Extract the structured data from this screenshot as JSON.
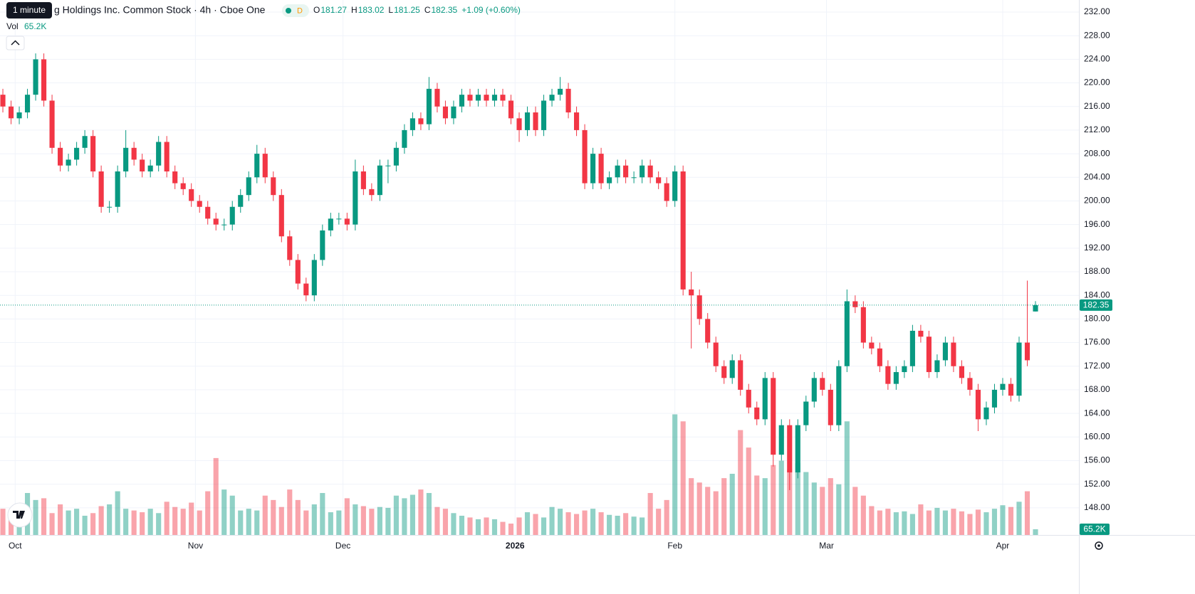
{
  "chart_data": {
    "type": "candlestick",
    "title": "g Holdings Inc. Common Stock · 4h · Cboe One",
    "tooltip": "1 minute",
    "badge": "D",
    "ohlc_labels": [
      "O",
      "H",
      "L",
      "C"
    ],
    "change": "+1.09 (+0.60%)",
    "volume_name": "Vol",
    "last_volume_label": "65.2K",
    "up_color": "#089981",
    "down_color": "#f23645",
    "grid": true,
    "ylim": [
      143.4,
      234.05
    ],
    "volume_lim": [
      0,
      1400000
    ],
    "xlim": [
      -0.35,
      131.3
    ],
    "yticks": [
      {
        "value": 148,
        "label": "148.00"
      },
      {
        "value": 152,
        "label": "152.00"
      },
      {
        "value": 156,
        "label": "156.00"
      },
      {
        "value": 160,
        "label": "160.00"
      },
      {
        "value": 164,
        "label": "164.00"
      },
      {
        "value": 168,
        "label": "168.00"
      },
      {
        "value": 172,
        "label": "172.00"
      },
      {
        "value": 176,
        "label": "176.00"
      },
      {
        "value": 180,
        "label": "180.00"
      },
      {
        "value": 184,
        "label": "184.00"
      },
      {
        "value": 188,
        "label": "188.00"
      },
      {
        "value": 192,
        "label": "192.00"
      },
      {
        "value": 196,
        "label": "196.00"
      },
      {
        "value": 200,
        "label": "200.00"
      },
      {
        "value": 204,
        "label": "204.00"
      },
      {
        "value": 208,
        "label": "208.00"
      },
      {
        "value": 212,
        "label": "212.00"
      },
      {
        "value": 216,
        "label": "216.00"
      },
      {
        "value": 220,
        "label": "220.00"
      },
      {
        "value": 224,
        "label": "224.00"
      },
      {
        "value": 228,
        "label": "228.00"
      },
      {
        "value": 232,
        "label": "232.00"
      }
    ],
    "xticks": [
      {
        "value": 1.5,
        "label": "Oct"
      },
      {
        "value": 23.5,
        "label": "Nov"
      },
      {
        "value": 41.5,
        "label": "Dec"
      },
      {
        "value": 62.5,
        "label": "2026"
      },
      {
        "value": 82,
        "label": "Feb"
      },
      {
        "value": 100.5,
        "label": "Mar"
      },
      {
        "value": 122,
        "label": "Apr"
      }
    ],
    "open": [
      218,
      216,
      214,
      215,
      218,
      224,
      217,
      209,
      206,
      207,
      209,
      211,
      205,
      199,
      199,
      205,
      209,
      207,
      205,
      206,
      210,
      205,
      203,
      202,
      200,
      199,
      197,
      196,
      196,
      199,
      201,
      204,
      208,
      204,
      201,
      194,
      190,
      186,
      184,
      190,
      195,
      197,
      197,
      196,
      205,
      202,
      201,
      206,
      206,
      209,
      212,
      214,
      213,
      219,
      216,
      214,
      216,
      218,
      217,
      218,
      217,
      218,
      217,
      214,
      212,
      215,
      212,
      217,
      218,
      219,
      215,
      212,
      203,
      208,
      203,
      204,
      206,
      204,
      204,
      206,
      204,
      203,
      200,
      205,
      185,
      184,
      180,
      176,
      172,
      170,
      173,
      168,
      165,
      163,
      170,
      157,
      162,
      154,
      162,
      166,
      170,
      168,
      162,
      172,
      183,
      182,
      176,
      175,
      172,
      169,
      171,
      172,
      178,
      177,
      171,
      173,
      176,
      172,
      170,
      168,
      163,
      165,
      168,
      169,
      167,
      176,
      181.27
    ],
    "high": [
      219,
      217,
      216,
      219,
      225,
      225,
      218,
      210,
      208,
      210,
      212,
      212,
      206,
      200,
      206,
      212,
      210,
      208,
      207,
      211,
      211,
      206,
      204,
      203,
      201,
      200,
      198,
      197,
      200,
      202,
      205,
      209.5,
      209,
      205,
      202,
      195,
      191,
      187,
      191,
      196,
      198,
      198,
      198,
      207,
      206,
      203,
      207,
      207,
      210,
      213,
      215,
      215,
      221,
      220,
      217,
      217,
      219,
      219,
      219,
      219,
      219,
      219,
      218,
      215,
      216,
      216,
      218,
      219,
      221,
      220,
      216,
      213,
      209,
      209,
      205,
      207,
      207,
      205,
      207,
      207,
      205,
      204,
      206,
      206,
      188,
      185,
      181,
      177,
      173,
      174,
      174,
      169,
      166,
      171,
      171,
      163,
      163,
      163,
      167,
      171,
      171,
      169,
      173,
      185,
      184,
      183,
      177,
      176,
      173,
      172,
      173,
      179,
      179,
      178,
      174,
      177,
      177,
      173,
      171,
      169,
      166,
      169,
      170,
      170,
      177,
      186.5,
      183.02
    ],
    "low": [
      215,
      213,
      213,
      214,
      217,
      216,
      208,
      205,
      205,
      206,
      208,
      204,
      198,
      198,
      198,
      204,
      206,
      204,
      204,
      205,
      204,
      202,
      201,
      199,
      198,
      196,
      195,
      195,
      195,
      198,
      200,
      203,
      203,
      200,
      193,
      189,
      185,
      183,
      183,
      189,
      194,
      196,
      195,
      195,
      201,
      200,
      200,
      203,
      205,
      208,
      211,
      212,
      212,
      215,
      213,
      213,
      215,
      216,
      216,
      216,
      216,
      216,
      213,
      210,
      211,
      211,
      211,
      216,
      217,
      214,
      211,
      202,
      202,
      202,
      202,
      203,
      203,
      203,
      203,
      203,
      202,
      199,
      199,
      184,
      175,
      179,
      175,
      171,
      169,
      169,
      167,
      164,
      162,
      162,
      155,
      156,
      151,
      153,
      161,
      165,
      167,
      161,
      161,
      171,
      181,
      175,
      174,
      171,
      168,
      168,
      170,
      171,
      176,
      170,
      170,
      172,
      171,
      169,
      167,
      161,
      162,
      164,
      167,
      166,
      166,
      172,
      181.25
    ],
    "close": [
      216,
      214,
      215,
      218,
      224,
      217,
      209,
      206,
      207,
      209,
      211,
      205,
      199,
      199,
      205,
      209,
      207,
      205,
      206,
      210,
      205,
      203,
      202,
      200,
      199,
      197,
      196,
      196,
      199,
      201,
      204,
      208,
      204,
      201,
      194,
      190,
      186,
      184,
      190,
      195,
      197,
      197,
      196,
      205,
      202,
      201,
      206,
      206,
      209,
      212,
      214,
      213,
      219,
      216,
      214,
      216,
      218,
      217,
      218,
      217,
      218,
      217,
      214,
      212,
      215,
      212,
      217,
      218,
      219,
      215,
      212,
      203,
      208,
      203,
      204,
      206,
      204,
      204,
      206,
      204,
      203,
      200,
      205,
      185,
      184,
      180,
      176,
      172,
      170,
      173,
      168,
      165,
      163,
      170,
      157,
      162,
      154,
      162,
      166,
      170,
      168,
      162,
      172,
      183,
      182,
      176,
      175,
      172,
      169,
      171,
      172,
      178,
      177,
      171,
      173,
      176,
      172,
      170,
      168,
      163,
      165,
      168,
      169,
      167,
      176,
      173,
      182.35
    ],
    "volume": [
      300000,
      250000,
      350000,
      480000,
      400000,
      420000,
      250000,
      350000,
      280000,
      300000,
      220000,
      250000,
      330000,
      350000,
      500000,
      300000,
      280000,
      260000,
      300000,
      250000,
      380000,
      320000,
      300000,
      370000,
      280000,
      500000,
      880000,
      520000,
      450000,
      280000,
      300000,
      280000,
      450000,
      400000,
      320000,
      520000,
      400000,
      280000,
      350000,
      480000,
      260000,
      280000,
      420000,
      350000,
      330000,
      300000,
      320000,
      310000,
      450000,
      420000,
      460000,
      520000,
      480000,
      320000,
      300000,
      250000,
      220000,
      200000,
      180000,
      200000,
      180000,
      150000,
      130000,
      200000,
      260000,
      240000,
      200000,
      320000,
      300000,
      260000,
      240000,
      280000,
      300000,
      260000,
      230000,
      220000,
      250000,
      210000,
      200000,
      480000,
      300000,
      400000,
      1380000,
      1300000,
      650000,
      600000,
      550000,
      500000,
      650000,
      700000,
      1200000,
      1000000,
      680000,
      650000,
      800000,
      850000,
      750000,
      820000,
      720000,
      600000,
      550000,
      650000,
      580000,
      1300000,
      550000,
      450000,
      330000,
      280000,
      300000,
      260000,
      270000,
      240000,
      350000,
      280000,
      310000,
      280000,
      300000,
      270000,
      240000,
      290000,
      260000,
      300000,
      340000,
      320000,
      380000,
      500000,
      65200
    ]
  }
}
